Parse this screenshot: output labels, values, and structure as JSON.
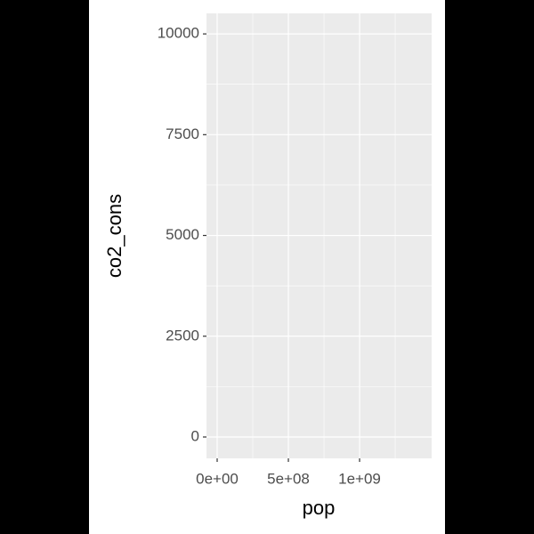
{
  "chart_data": {
    "type": "scatter",
    "x_label": "pop",
    "y_label": "co2_cons",
    "xlim": [
      -75000000,
      1506000000
    ],
    "xticks": [
      {
        "value": 0,
        "label": "0e+00"
      },
      {
        "value": 500000000,
        "label": "5e+08"
      },
      {
        "value": 1000000000,
        "label": "1e+09"
      }
    ],
    "ylim": [
      -530,
      10510
    ],
    "yticks": [
      0,
      2500,
      5000,
      7500,
      10000
    ],
    "grid": true
  }
}
